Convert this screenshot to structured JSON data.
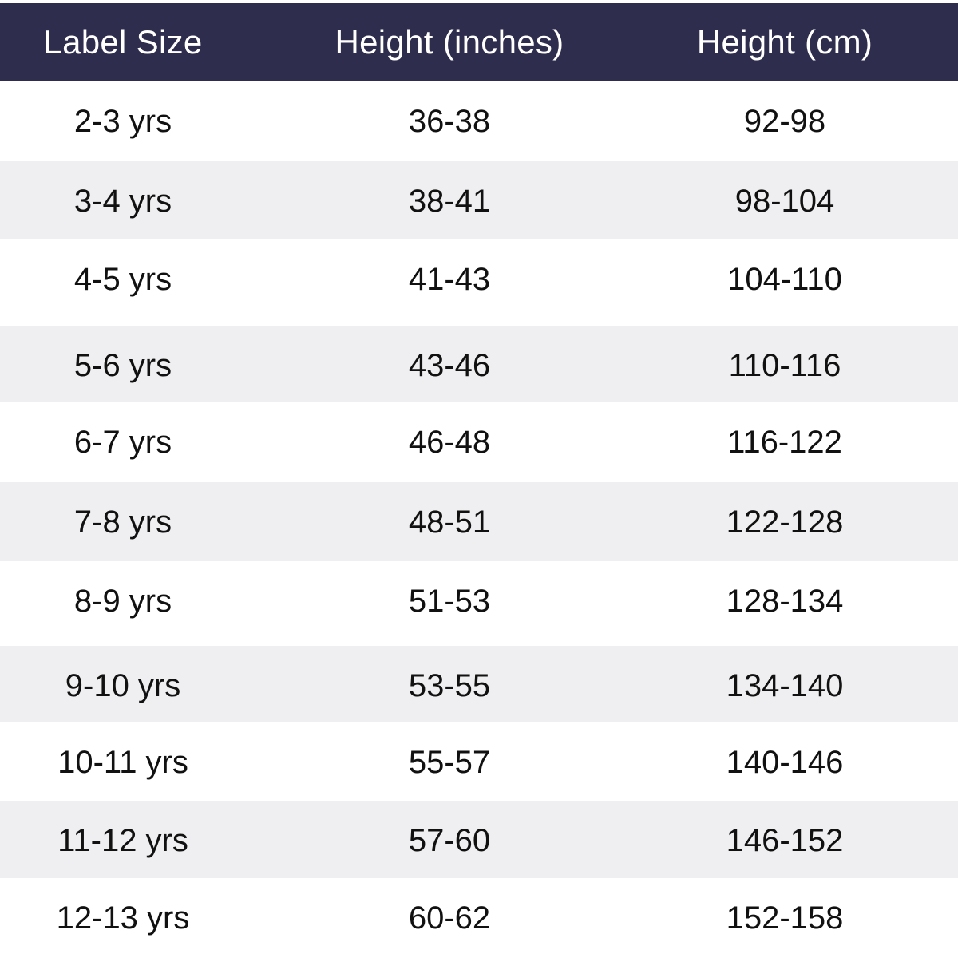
{
  "colors": {
    "header_bg": "#2e2d4d",
    "header_text": "#ffffff",
    "row_light": "#ffffff",
    "row_shaded": "#efeff1",
    "body_text": "#111111"
  },
  "table": {
    "headers": [
      "Label Size",
      "Height (inches)",
      "Height (cm)"
    ],
    "rows": [
      [
        "2-3 yrs",
        "36-38",
        "92-98"
      ],
      [
        "3-4 yrs",
        "38-41",
        "98-104"
      ],
      [
        "4-5 yrs",
        "41-43",
        "104-110"
      ],
      [
        "5-6 yrs",
        "43-46",
        "110-116"
      ],
      [
        "6-7 yrs",
        "46-48",
        "116-122"
      ],
      [
        "7-8 yrs",
        "48-51",
        "122-128"
      ],
      [
        "8-9 yrs",
        "51-53",
        "128-134"
      ],
      [
        "9-10 yrs",
        "53-55",
        "134-140"
      ],
      [
        "10-11 yrs",
        "55-57",
        "140-146"
      ],
      [
        "11-12 yrs",
        "57-60",
        "146-152"
      ],
      [
        "12-13 yrs",
        "60-62",
        "152-158"
      ]
    ]
  }
}
